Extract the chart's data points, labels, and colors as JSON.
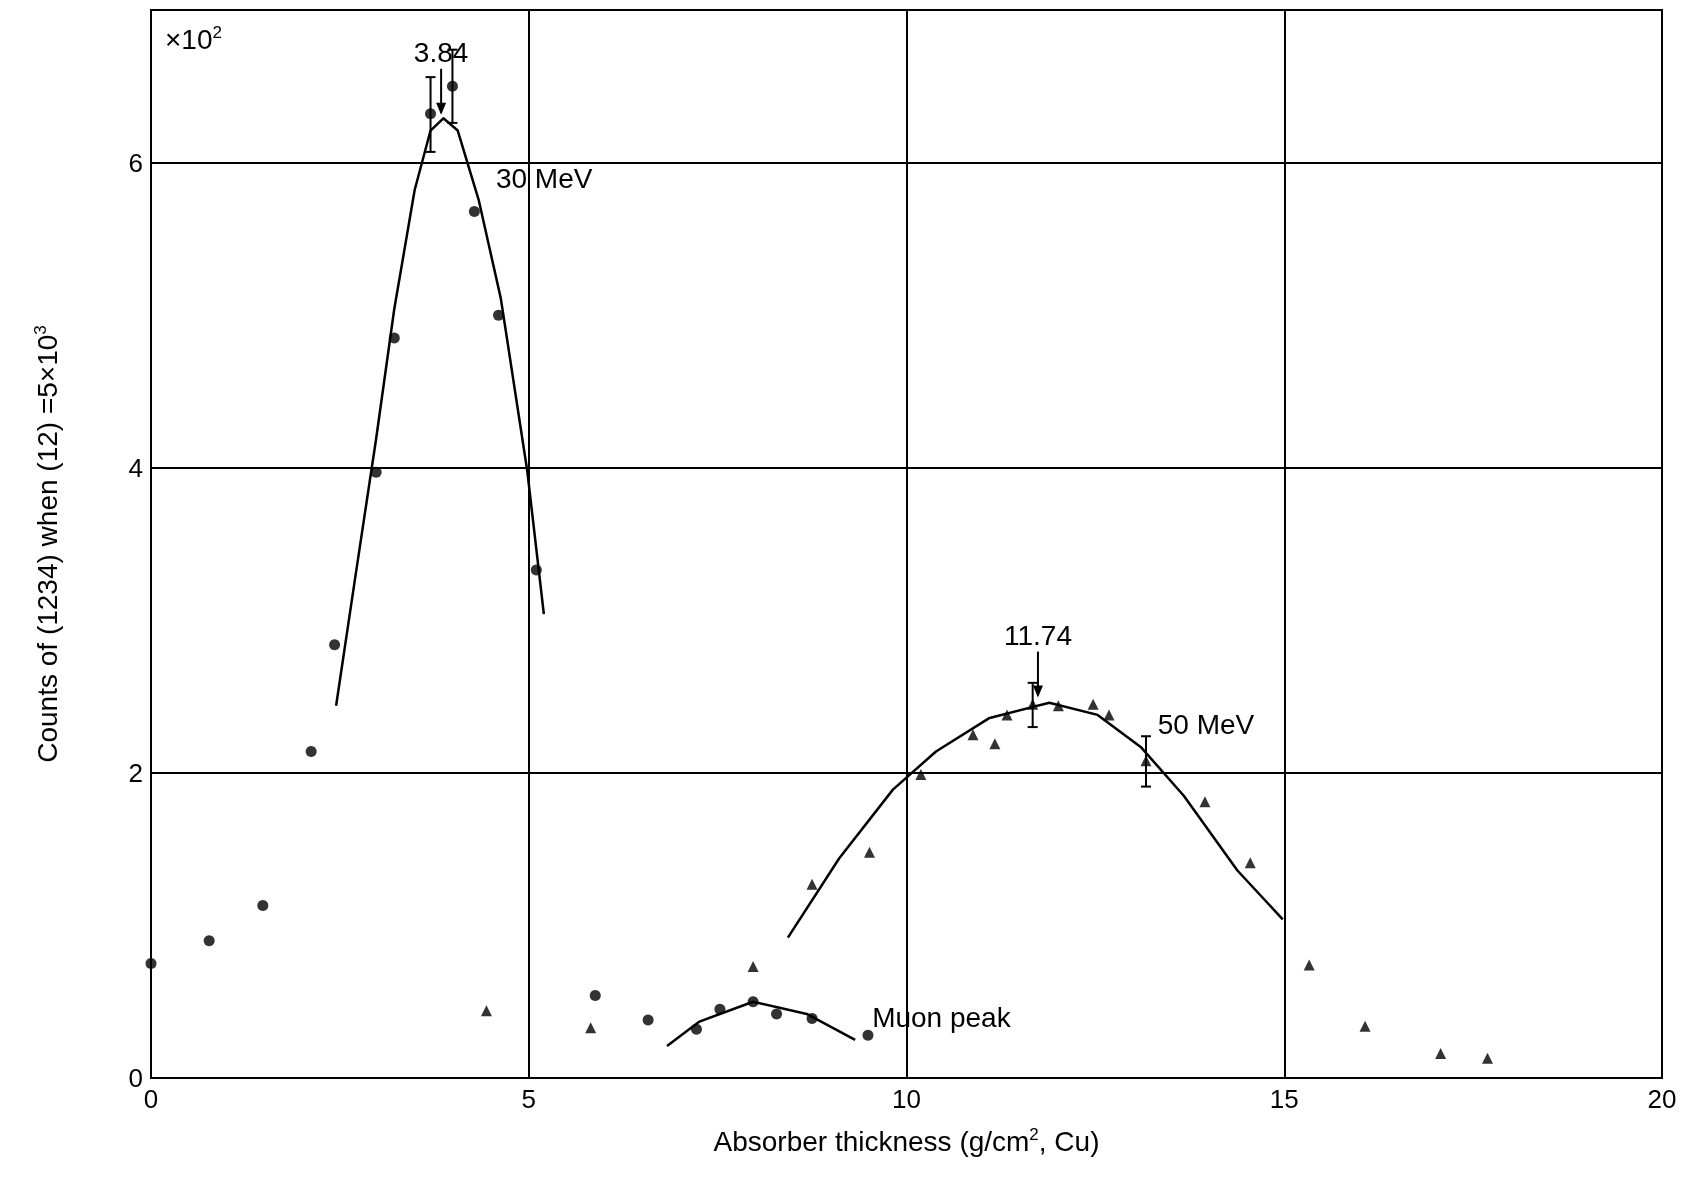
{
  "chart_data": {
    "type": "scatter",
    "xlabel": "Absorber thickness (g/cm$^{2}$, Cu)",
    "ylabel": "Counts of (1234) when (12) =5×10$^{3}$",
    "annotations": [
      "×10$^{2}$",
      {
        "text": "3.84",
        "x": 3.84,
        "y": 6.3
      },
      {
        "text": "11.74",
        "x": 11.74,
        "y": 2.48
      }
    ],
    "xlim": [
      0,
      20
    ],
    "xticks": [
      0,
      5,
      10,
      15,
      20
    ],
    "ylim": [
      0,
      7
    ],
    "yticks": [
      0,
      2,
      4,
      6
    ],
    "grid": true,
    "series": [
      {
        "marker": "circle",
        "color": "#000000",
        "x": [
          0,
          0.77,
          1.48,
          2.12,
          2.43,
          2.98,
          3.22,
          3.7,
          3.99,
          4.28,
          4.6,
          5.1,
          5.88,
          6.58,
          7.22,
          7.53,
          7.97,
          8.28,
          8.75,
          9.49
        ],
        "values": [
          0.75,
          0.9,
          1.13,
          2.14,
          2.84,
          3.97,
          4.85,
          6.32,
          6.5,
          5.68,
          5.0,
          3.33,
          0.54,
          0.38,
          0.32,
          0.45,
          0.5,
          0.42,
          0.39,
          0.28
        ],
        "errors": [
          null,
          null,
          null,
          null,
          null,
          null,
          null,
          [
            6.07,
            6.56
          ],
          [
            6.26,
            6.74
          ],
          null,
          null,
          null,
          null,
          null,
          null,
          null,
          null,
          null,
          null,
          null
        ]
      },
      {
        "marker": "triangle",
        "color": "#000000",
        "x": [
          4.44,
          5.82,
          7.97,
          8.75,
          9.51,
          10.19,
          10.88,
          11.17,
          11.33,
          11.67,
          12.01,
          12.47,
          12.68,
          13.17,
          13.95,
          14.55,
          15.33,
          16.07,
          17.07,
          17.69
        ],
        "values": [
          0.44,
          0.33,
          0.73,
          1.27,
          1.48,
          1.99,
          2.25,
          2.19,
          2.38,
          2.45,
          2.44,
          2.45,
          2.38,
          2.08,
          1.81,
          1.41,
          0.74,
          0.34,
          0.16,
          0.13
        ],
        "errors": [
          null,
          null,
          null,
          null,
          null,
          null,
          null,
          null,
          null,
          [
            2.3,
            2.59
          ],
          null,
          null,
          null,
          [
            1.91,
            2.24
          ],
          null,
          null,
          null,
          null,
          null,
          null
        ]
      },
      {
        "type": "line",
        "name": "30 MeV",
        "marker": "none",
        "color": "#000000",
        "x": [
          2.45,
          2.7,
          2.98,
          3.22,
          3.49,
          3.7,
          3.87,
          4.06,
          4.34,
          4.63,
          4.98,
          5.2
        ],
        "values": [
          2.44,
          3.27,
          4.19,
          5.04,
          5.82,
          6.21,
          6.29,
          6.21,
          5.75,
          5.11,
          3.98,
          3.04
        ]
      },
      {
        "type": "line",
        "name": "50 MeV",
        "marker": "none",
        "color": "#000000",
        "x": [
          8.43,
          9.11,
          9.82,
          10.39,
          11.1,
          11.89,
          12.53,
          13.1,
          13.67,
          14.38,
          14.98
        ],
        "values": [
          0.92,
          1.44,
          1.89,
          2.14,
          2.36,
          2.46,
          2.38,
          2.17,
          1.85,
          1.36,
          1.04
        ]
      },
      {
        "type": "line",
        "name": "Muon peak",
        "marker": "none",
        "color": "#000000",
        "x": [
          6.83,
          7.26,
          7.97,
          8.68,
          9.32
        ],
        "values": [
          0.21,
          0.37,
          0.5,
          0.42,
          0.25
        ]
      }
    ]
  }
}
